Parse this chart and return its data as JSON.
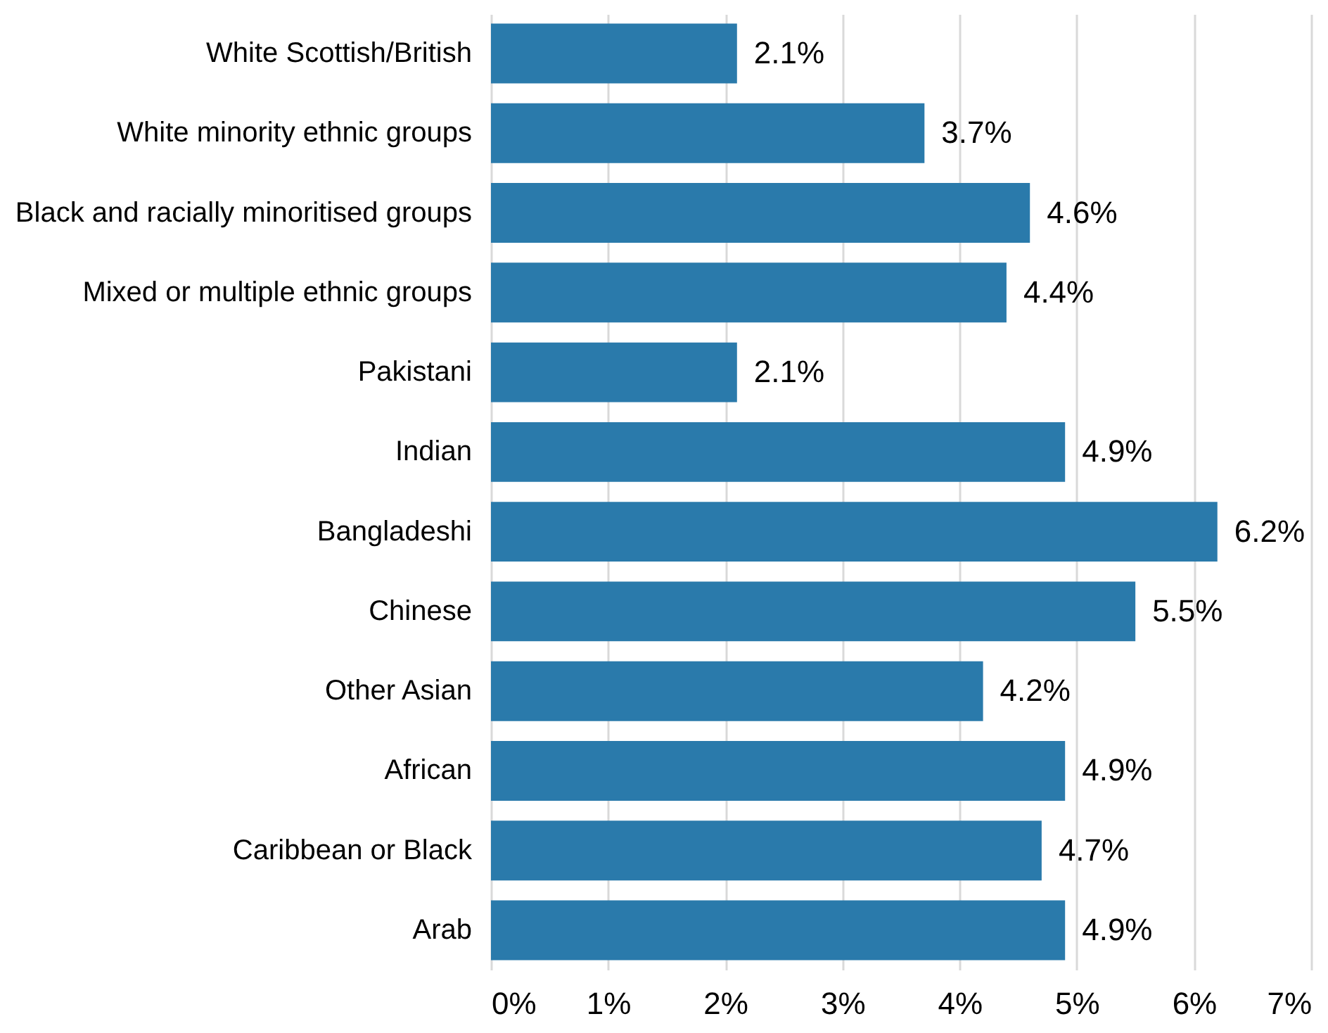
{
  "chart_data": {
    "type": "bar",
    "orientation": "horizontal",
    "categories": [
      "White Scottish/British",
      "White minority ethnic groups",
      "Black and racially minoritised groups",
      "Mixed or multiple ethnic groups",
      "Pakistani",
      "Indian",
      "Bangladeshi",
      "Chinese",
      "Other Asian",
      "African",
      "Caribbean or Black",
      "Arab"
    ],
    "values": [
      2.1,
      3.7,
      4.6,
      4.4,
      2.1,
      4.9,
      6.2,
      5.5,
      4.2,
      4.9,
      4.7,
      4.9
    ],
    "value_labels": [
      "2.1%",
      "3.7%",
      "4.6%",
      "4.4%",
      "2.1%",
      "4.9%",
      "6.2%",
      "5.5%",
      "4.2%",
      "4.9%",
      "4.7%",
      "4.9%"
    ],
    "color": "#2a7aab",
    "xlim": [
      0,
      7
    ],
    "xticks": [
      {
        "value": 0,
        "label": "0%"
      },
      {
        "value": 1,
        "label": "1%"
      },
      {
        "value": 2,
        "label": "2%"
      },
      {
        "value": 3,
        "label": "3%"
      },
      {
        "value": 4,
        "label": "4%"
      },
      {
        "value": 5,
        "label": "5%"
      },
      {
        "value": 6,
        "label": "6%"
      },
      {
        "value": 7,
        "label": "7%"
      }
    ],
    "grid": "x"
  }
}
